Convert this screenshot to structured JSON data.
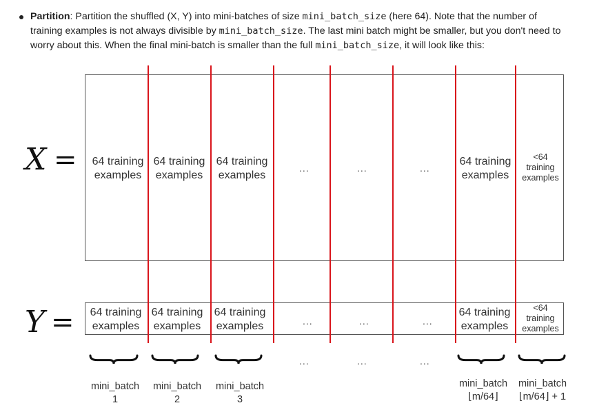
{
  "bullet": {
    "bold": "Partition",
    "t1": ": Partition the shuffled (X, Y) into mini-batches of size ",
    "code1": "mini_batch_size",
    "t2": " (here 64). Note that the number of training examples is not always divisible by ",
    "code2": "mini_batch_size",
    "t3": ". The last mini batch might be smaller, but you don't need to worry about this. When the final mini-batch is smaller than the full ",
    "code3": "mini_batch_size",
    "t4": ", it will look like this:"
  },
  "labels": {
    "x": "X",
    "y": "Y",
    "eq": "="
  },
  "cells": [
    {
      "l1": "64 training",
      "l2": "examples"
    },
    {
      "l1": "64 training",
      "l2": "examples"
    },
    {
      "l1": "64 training",
      "l2": "examples"
    },
    {
      "l1": "64 training",
      "l2": "examples"
    },
    {
      "l1": "<64",
      "l2": "training",
      "l3": "examples"
    }
  ],
  "ellipsis": "...",
  "captions": [
    {
      "l1": "mini_batch",
      "l2": "1"
    },
    {
      "l1": "mini_batch",
      "l2": "2"
    },
    {
      "l1": "mini_batch",
      "l2": "3"
    },
    {
      "l1": "mini_batch",
      "l2": "⌊m/64⌋"
    },
    {
      "l1": "mini_batch",
      "l2": "⌊m/64⌋ + 1"
    }
  ],
  "colors": {
    "divider": "#d9141b",
    "box": "#555555"
  }
}
